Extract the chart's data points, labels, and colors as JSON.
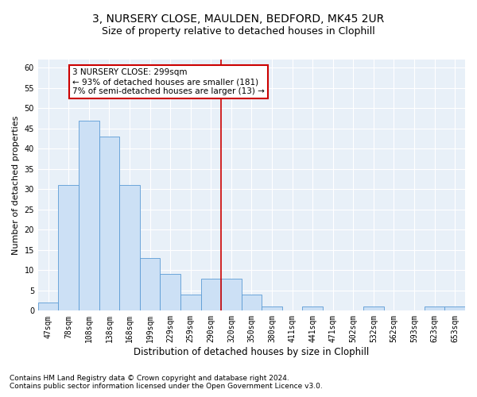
{
  "title1": "3, NURSERY CLOSE, MAULDEN, BEDFORD, MK45 2UR",
  "title2": "Size of property relative to detached houses in Clophill",
  "xlabel": "Distribution of detached houses by size in Clophill",
  "ylabel": "Number of detached properties",
  "categories": [
    "47sqm",
    "78sqm",
    "108sqm",
    "138sqm",
    "168sqm",
    "199sqm",
    "229sqm",
    "259sqm",
    "290sqm",
    "320sqm",
    "350sqm",
    "380sqm",
    "411sqm",
    "441sqm",
    "471sqm",
    "502sqm",
    "532sqm",
    "562sqm",
    "593sqm",
    "623sqm",
    "653sqm"
  ],
  "values": [
    2,
    31,
    47,
    43,
    31,
    13,
    9,
    4,
    8,
    8,
    4,
    1,
    0,
    1,
    0,
    0,
    1,
    0,
    0,
    1,
    1
  ],
  "bar_color": "#cce0f5",
  "bar_edge_color": "#5b9bd5",
  "property_line_x": 8.5,
  "annotation_text": "3 NURSERY CLOSE: 299sqm\n← 93% of detached houses are smaller (181)\n7% of semi-detached houses are larger (13) →",
  "annotation_box_color": "#ffffff",
  "annotation_box_edge": "#cc0000",
  "vline_color": "#cc0000",
  "ylim": [
    0,
    62
  ],
  "yticks": [
    0,
    5,
    10,
    15,
    20,
    25,
    30,
    35,
    40,
    45,
    50,
    55,
    60
  ],
  "footnote1": "Contains HM Land Registry data © Crown copyright and database right 2024.",
  "footnote2": "Contains public sector information licensed under the Open Government Licence v3.0.",
  "plot_bg_color": "#e8f0f8",
  "title1_fontsize": 10,
  "title2_fontsize": 9,
  "xlabel_fontsize": 8.5,
  "ylabel_fontsize": 8,
  "tick_fontsize": 7,
  "annotation_fontsize": 7.5,
  "footnote_fontsize": 6.5
}
